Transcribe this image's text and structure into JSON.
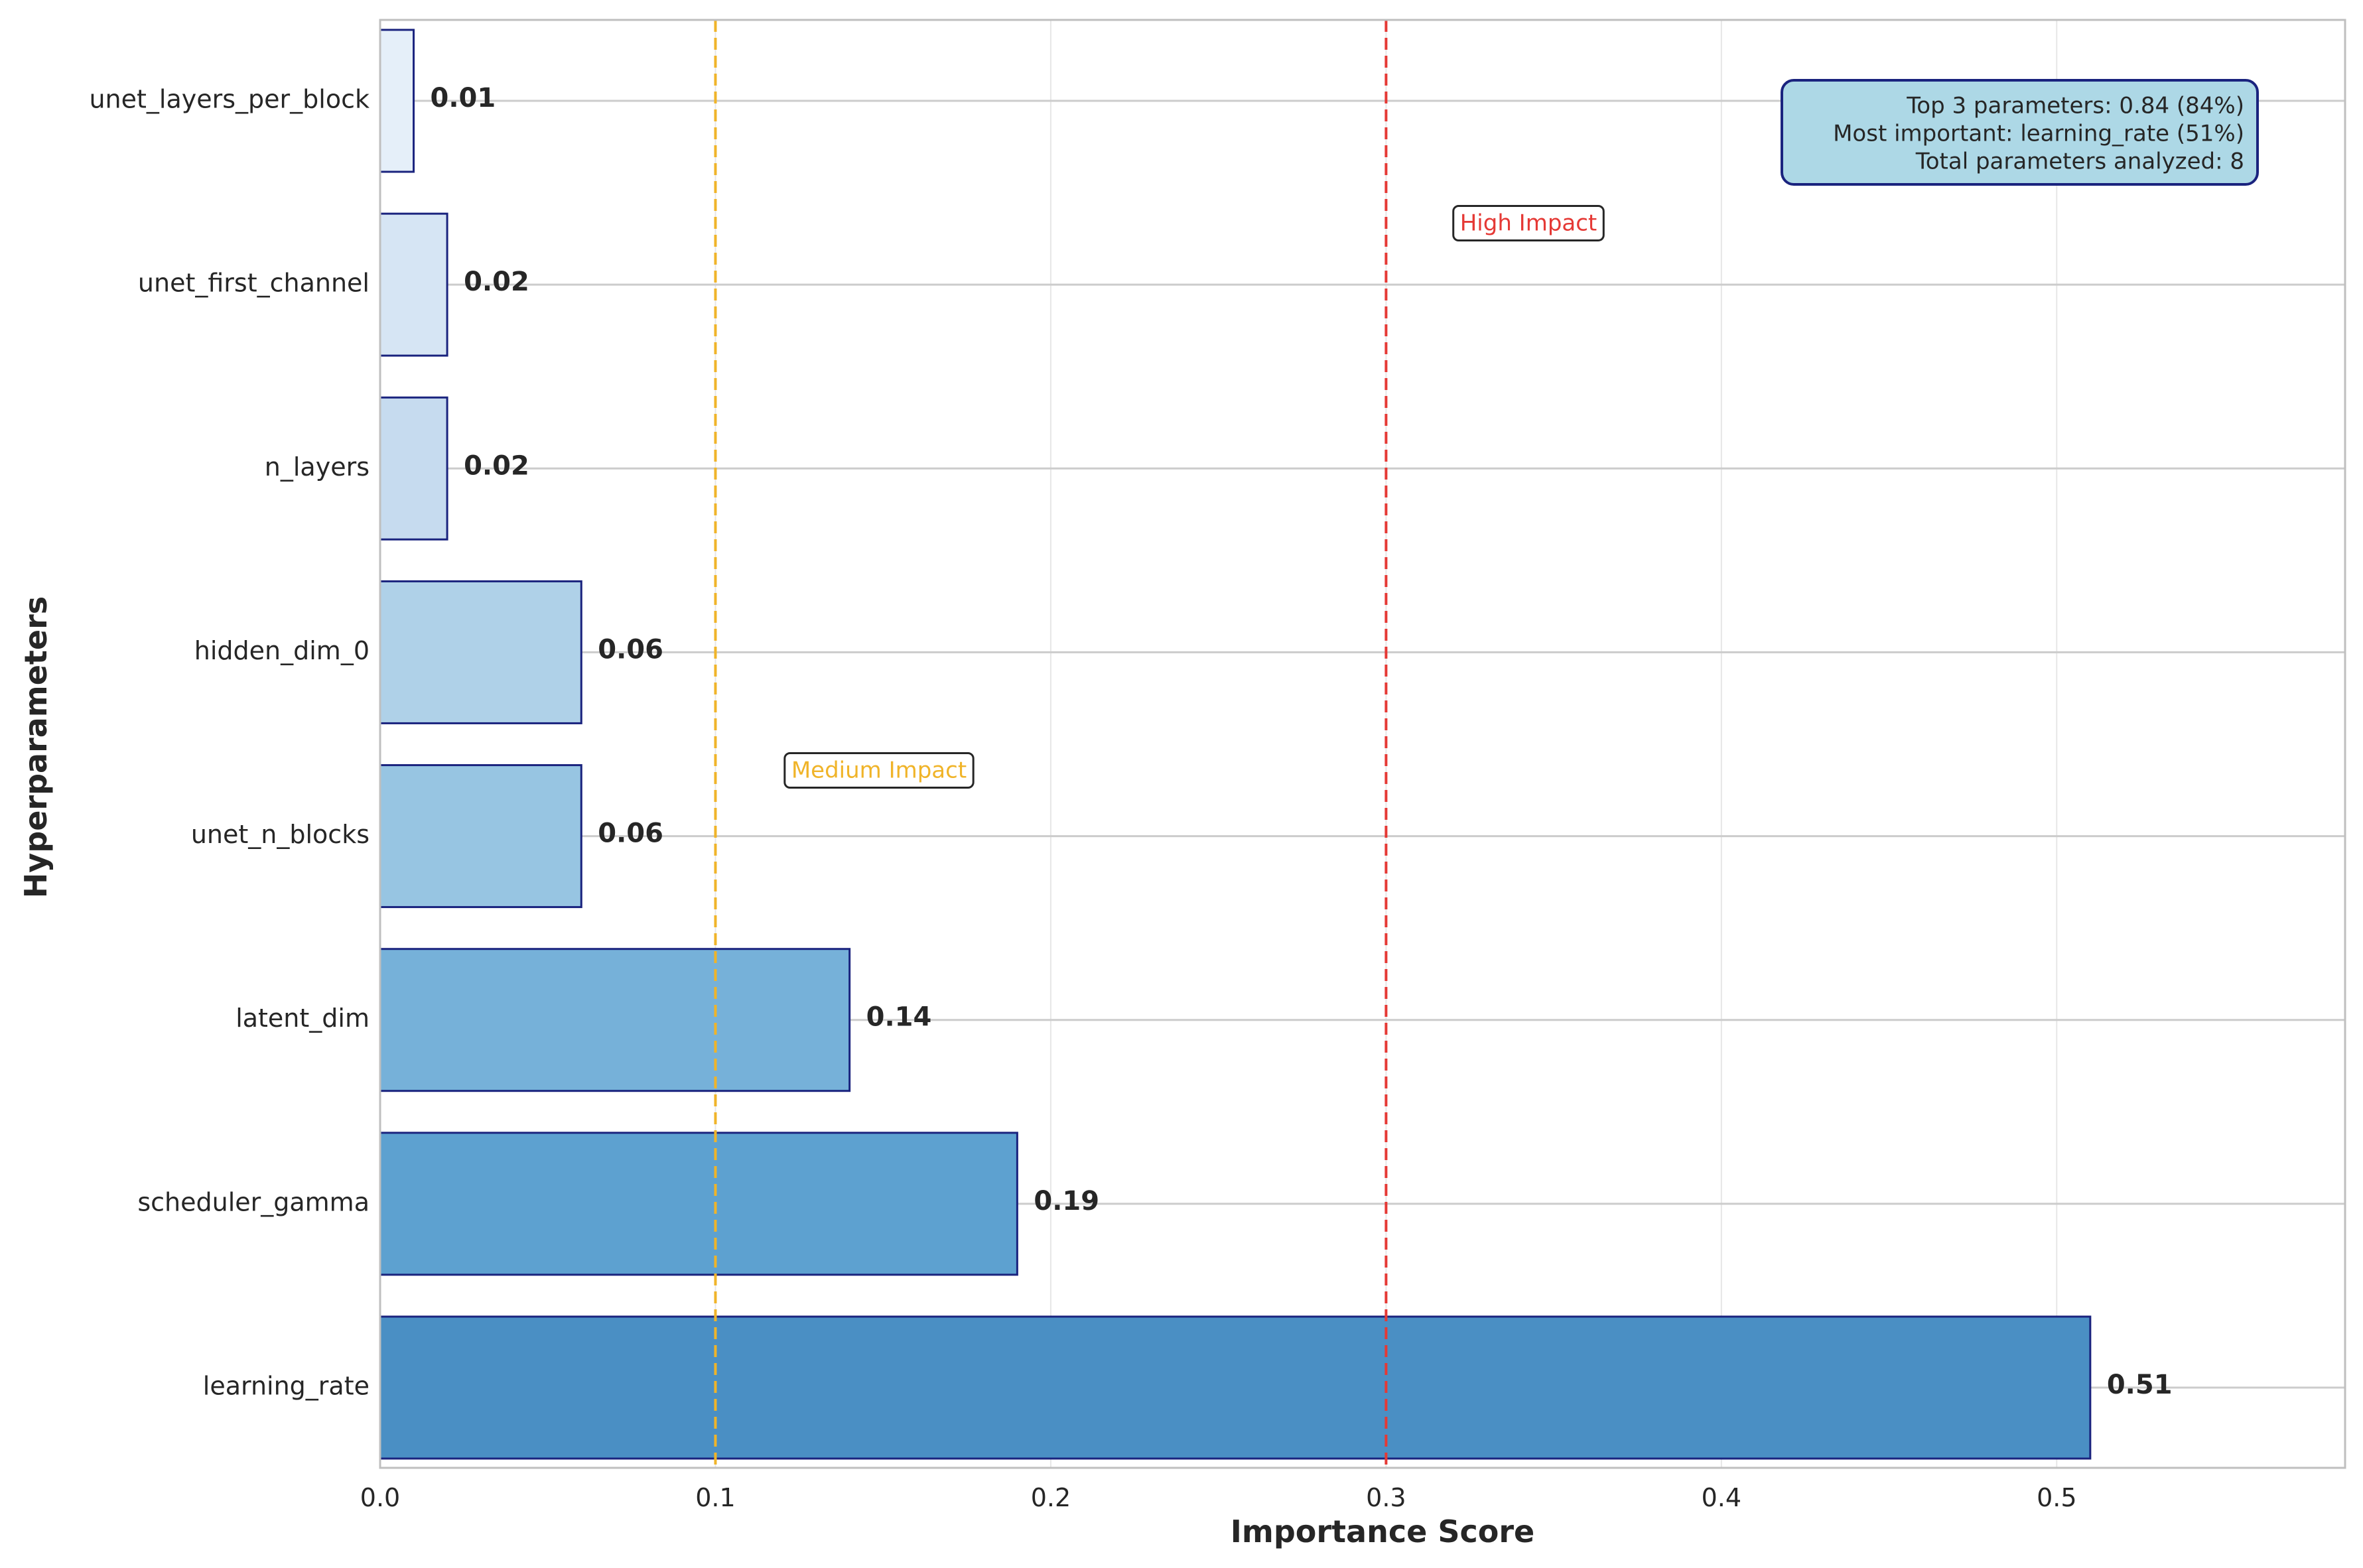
{
  "chart_data": {
    "type": "bar",
    "orientation": "horizontal",
    "title": "",
    "xlabel": "Importance Score",
    "ylabel": "Hyperparameters",
    "xlim": [
      0,
      0.586
    ],
    "xticks": [
      0.0,
      0.1,
      0.2,
      0.3,
      0.4,
      0.5
    ],
    "xtick_labels": [
      "0.0",
      "0.1",
      "0.2",
      "0.3",
      "0.4",
      "0.5"
    ],
    "grid": true,
    "categories": [
      "learning_rate",
      "scheduler_gamma",
      "latent_dim",
      "unet_n_blocks",
      "hidden_dim_0",
      "n_layers",
      "unet_first_channel",
      "unet_layers_per_block"
    ],
    "values": [
      0.51,
      0.19,
      0.14,
      0.06,
      0.06,
      0.02,
      0.02,
      0.01
    ],
    "value_labels": [
      "0.51",
      "0.19",
      "0.14",
      "0.06",
      "0.06",
      "0.02",
      "0.02",
      "0.01"
    ],
    "bar_colors": [
      "#4a8fc4",
      "#5da1d0",
      "#76b1d9",
      "#97c5e2",
      "#afd1e8",
      "#c6dbef",
      "#d6e5f4",
      "#e5eff9"
    ],
    "bar_edge_color": "#1a237e",
    "reference_lines": [
      {
        "x": 0.1,
        "label": "Medium Impact",
        "color": "#f0b429",
        "label_x": 0.1,
        "label_category_index": 3.6
      },
      {
        "x": 0.3,
        "label": "High Impact",
        "color": "#e53935",
        "label_x": 0.3,
        "label_category_index": 6.6
      }
    ],
    "info_box": {
      "lines": [
        "Top 3 parameters: 0.84 (84%)",
        "Most important: learning_rate (51%)",
        "Total parameters analyzed: 8"
      ],
      "placement": "top-right",
      "background": "#add8e6",
      "border": "#1a237e"
    }
  }
}
